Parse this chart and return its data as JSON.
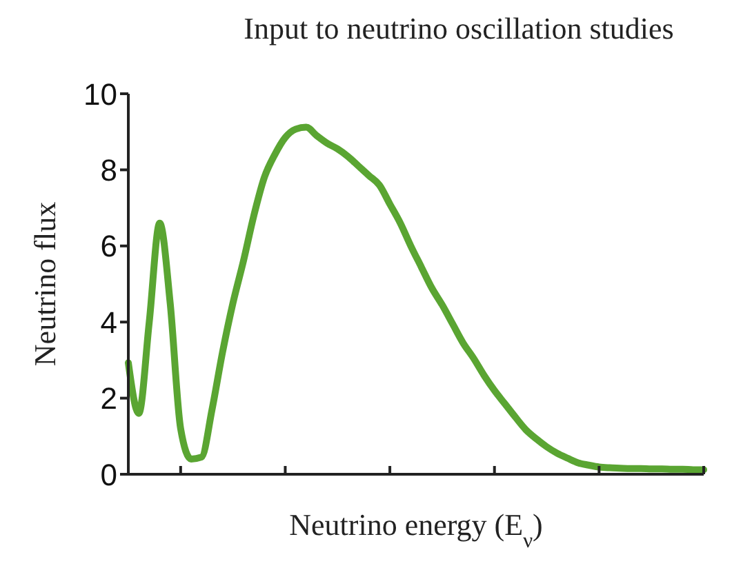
{
  "chart_data": {
    "type": "line",
    "title": "Input to neutrino oscillation studies",
    "xlabel": "Neutrino energy (E$_{ν}$)",
    "ylabel": "Neutrino flux",
    "categories": [
      null,
      null,
      null,
      null,
      null,
      null,
      null,
      null,
      null,
      null,
      null,
      null,
      null,
      null,
      null,
      null,
      null,
      null,
      null,
      null,
      null,
      null,
      null,
      null,
      null,
      null,
      null,
      null,
      null,
      null,
      null,
      null,
      null,
      null,
      null,
      null,
      null,
      null,
      null,
      null,
      null,
      null,
      null,
      null,
      null,
      null,
      null,
      null,
      null,
      null,
      null,
      null,
      null,
      null,
      null,
      null
    ],
    "series": [
      {
        "color": "#5aa532",
        "values": [
          2.93,
          1.6,
          4.0,
          6.6,
          4.5,
          1.2,
          0.4,
          0.45,
          1.7,
          3.2,
          4.5,
          5.6,
          6.8,
          7.8,
          8.4,
          8.85,
          9.07,
          9.12,
          8.9,
          8.7,
          8.55,
          8.35,
          8.1,
          7.85,
          7.6,
          7.1,
          6.6,
          6.0,
          5.45,
          4.9,
          4.45,
          3.95,
          3.45,
          3.05,
          2.6,
          2.2,
          1.85,
          1.5,
          1.17,
          0.93,
          0.72,
          0.55,
          0.42,
          0.3,
          0.24,
          0.19,
          0.17,
          0.16,
          0.15,
          0.15,
          0.14,
          0.14,
          0.13,
          0.13,
          0.12,
          0.12
        ]
      }
    ],
    "ylim": [
      0,
      10
    ],
    "yticks": [
      0,
      2,
      4,
      6,
      8,
      10
    ],
    "tick_labels": "y"
  }
}
